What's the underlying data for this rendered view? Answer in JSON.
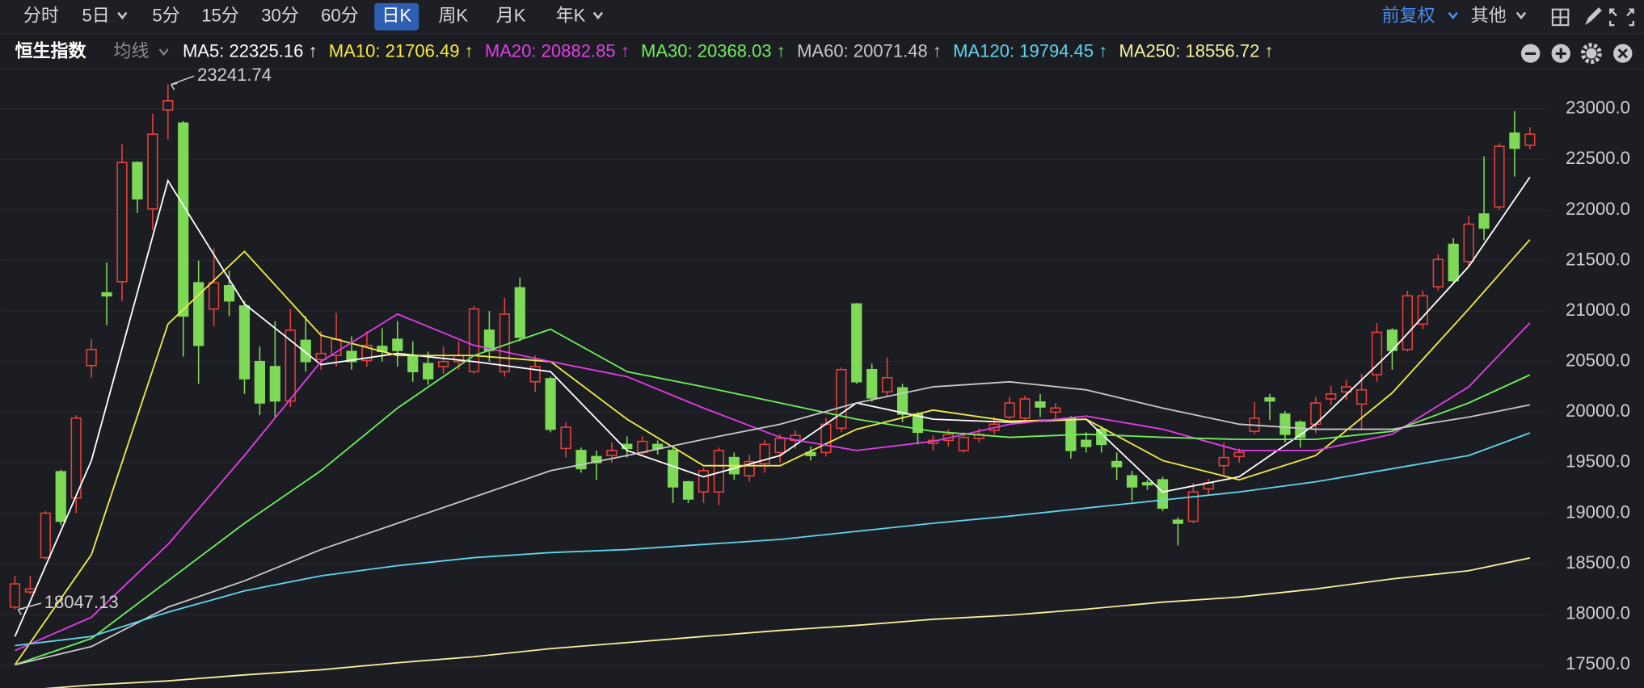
{
  "toolbar": {
    "periods": [
      "分时",
      "5日",
      "5分",
      "15分",
      "30分",
      "60分",
      "日K",
      "周K",
      "月K",
      "年K"
    ],
    "active_period": "日K",
    "adjust": "前复权",
    "other": "其他"
  },
  "chart_data": {
    "type": "candlestick",
    "title": "恒生指数",
    "indicator_label": "均线",
    "up_color": "#e8413b",
    "down_color": "#7ed957",
    "candles": {
      "open": [
        18070,
        18220,
        18560,
        19410,
        19150,
        20460,
        21180,
        21290,
        22470,
        22010,
        22990,
        22860,
        21280,
        21020,
        21250,
        21050,
        20500,
        20450,
        20110,
        20710,
        20520,
        20560,
        20600,
        20510,
        20650,
        20720,
        20560,
        20480,
        20450,
        20500,
        20400,
        20810,
        20400,
        21230,
        20300,
        20330,
        19640,
        19620,
        19560,
        19570,
        19680,
        19600,
        19680,
        19620,
        19310,
        19210,
        19210,
        19550,
        19370,
        19490,
        19600,
        19720,
        19600,
        19600,
        19840,
        21070,
        20420,
        20200,
        20240,
        19980,
        19690,
        19720,
        19620,
        19740,
        19820,
        19950,
        19940,
        20100,
        20000,
        19940,
        19720,
        19830,
        19510,
        19370,
        19300,
        19330,
        18930,
        18920,
        19240,
        19470,
        19560,
        19810,
        20140,
        19980,
        19900,
        19880,
        20130,
        20200,
        20080,
        20370,
        20810,
        20620,
        20870,
        21240,
        21660,
        21490,
        21960,
        22030,
        22760,
        22640
      ],
      "high": [
        18380,
        18380,
        19020,
        19430,
        19970,
        20720,
        21480,
        22650,
        22480,
        22950,
        23241.74,
        22880,
        21500,
        21620,
        21400,
        21100,
        20650,
        20900,
        21020,
        20950,
        20800,
        20980,
        20750,
        20800,
        20830,
        20900,
        20700,
        20600,
        20650,
        20700,
        21050,
        21000,
        21130,
        21330,
        20560,
        20350,
        19900,
        19650,
        19620,
        19700,
        19760,
        19760,
        19720,
        19650,
        19320,
        19450,
        19650,
        19600,
        19580,
        19720,
        19780,
        19820,
        19660,
        19940,
        20440,
        21080,
        20480,
        20540,
        20280,
        20000,
        19770,
        19830,
        19800,
        19840,
        19950,
        20150,
        20160,
        20180,
        20090,
        19960,
        19800,
        19860,
        19600,
        19420,
        19330,
        19360,
        18960,
        19300,
        19340,
        19700,
        19640,
        20100,
        20180,
        20010,
        19920,
        20150,
        20260,
        20320,
        20380,
        20880,
        20830,
        21200,
        21200,
        21560,
        21720,
        21940,
        22530,
        22660,
        22980,
        22820
      ],
      "low": [
        18047.13,
        18200,
        18540,
        18880,
        19000,
        20340,
        20860,
        21100,
        21970,
        21800,
        22700,
        20550,
        20280,
        20850,
        20950,
        20180,
        19970,
        19950,
        20050,
        20400,
        20420,
        20450,
        20420,
        20450,
        20500,
        20450,
        20300,
        20270,
        20380,
        20420,
        20380,
        20500,
        20350,
        20700,
        20200,
        19800,
        19550,
        19400,
        19330,
        19500,
        19550,
        19560,
        19580,
        19100,
        19100,
        19100,
        19080,
        19330,
        19310,
        19400,
        19500,
        19640,
        19520,
        19560,
        19800,
        20280,
        20100,
        20150,
        19900,
        19680,
        19620,
        19660,
        19600,
        19700,
        19780,
        19930,
        19900,
        19950,
        19930,
        19540,
        19600,
        19600,
        19330,
        19120,
        19230,
        19020,
        18680,
        18900,
        19180,
        19380,
        19500,
        19780,
        19920,
        19700,
        19650,
        19790,
        20070,
        20120,
        19820,
        20300,
        20420,
        20600,
        20820,
        21200,
        21270,
        21450,
        21700,
        22000,
        22330,
        22600
      ],
      "close": [
        18300,
        18250,
        19000,
        18920,
        19940,
        20620,
        21150,
        22470,
        22110,
        22750,
        23080,
        20950,
        20660,
        21280,
        21100,
        20330,
        20090,
        20110,
        20810,
        20500,
        20580,
        20720,
        20500,
        20660,
        20600,
        20610,
        20400,
        20330,
        20500,
        20560,
        21020,
        20610,
        20970,
        20740,
        20450,
        19830,
        19850,
        19440,
        19500,
        19620,
        19640,
        19710,
        19640,
        19260,
        19140,
        19420,
        19620,
        19390,
        19510,
        19680,
        19740,
        19770,
        19570,
        19880,
        20420,
        20300,
        20140,
        20340,
        19980,
        19800,
        19720,
        19780,
        19750,
        19780,
        19880,
        20090,
        20130,
        20050,
        20040,
        19620,
        19660,
        19680,
        19460,
        19260,
        19280,
        19050,
        18900,
        19210,
        19300,
        19550,
        19600,
        19940,
        20110,
        19780,
        19750,
        20090,
        20180,
        20250,
        20220,
        20790,
        20610,
        21150,
        21150,
        21510,
        21300,
        21860,
        21820,
        22630,
        22610,
        22750
      ]
    },
    "ylim": [
      17270,
      23352
    ],
    "yticks": [
      {
        "value": 17500,
        "label": "17500.0"
      },
      {
        "value": 18000,
        "label": "18000.0"
      },
      {
        "value": 18500,
        "label": "18500.0"
      },
      {
        "value": 19000,
        "label": "19000.0"
      },
      {
        "value": 19500,
        "label": "19500.0"
      },
      {
        "value": 20000,
        "label": "20000.0"
      },
      {
        "value": 20500,
        "label": "20500.0"
      },
      {
        "value": 21000,
        "label": "21000.0"
      },
      {
        "value": 21500,
        "label": "21500.0"
      },
      {
        "value": 22000,
        "label": "22000.0"
      },
      {
        "value": 22500,
        "label": "22500.0"
      },
      {
        "value": 23000,
        "label": "23000.0"
      }
    ],
    "grid": true,
    "line_x": [
      0,
      5,
      10,
      15,
      20,
      25,
      30,
      35,
      40,
      45,
      50,
      55,
      60,
      65,
      70,
      75,
      80,
      85,
      90,
      95,
      99
    ],
    "series": [
      {
        "name": "MA5: 22325.16 ↑",
        "color": "#ffffff",
        "values": [
          17780,
          19520,
          22290,
          21070,
          20470,
          20580,
          20500,
          20400,
          19620,
          19360,
          19570,
          20090,
          19930,
          19900,
          19930,
          19210,
          19360,
          19880,
          20610,
          21440,
          22325.16
        ]
      },
      {
        "name": "MA10: 21706.49 ↑",
        "color": "#f5ec42",
        "values": [
          17500,
          18590,
          20870,
          21590,
          20760,
          20560,
          20560,
          20500,
          19930,
          19470,
          19470,
          19830,
          20020,
          19910,
          19930,
          19520,
          19330,
          19570,
          20190,
          21020,
          21706.49
        ]
      },
      {
        "name": "MA20: 20882.85 ↑",
        "color": "#e33ee8",
        "values": [
          17640,
          17970,
          18690,
          19570,
          20500,
          20970,
          20660,
          20500,
          20350,
          20040,
          19750,
          19620,
          19710,
          19880,
          19960,
          19830,
          19620,
          19620,
          19780,
          20250,
          20882.85
        ]
      },
      {
        "name": "MA30: 20368.03 ↑",
        "color": "#6ef05a",
        "values": [
          17500,
          17760,
          18330,
          18900,
          19420,
          20040,
          20560,
          20820,
          20400,
          20250,
          20090,
          19930,
          19810,
          19750,
          19780,
          19750,
          19730,
          19730,
          19810,
          20090,
          20368.03
        ]
      },
      {
        "name": "MA60: 20071.48 ↑",
        "color": "#c8c8c8",
        "values": [
          17500,
          17680,
          18070,
          18330,
          18640,
          18900,
          19160,
          19420,
          19570,
          19730,
          19880,
          20090,
          20250,
          20300,
          20220,
          20040,
          19880,
          19830,
          19830,
          19950,
          20071.48
        ]
      },
      {
        "name": "MA120: 19794.45 ↑",
        "color": "#5fd6ee",
        "values": [
          17690,
          17780,
          18020,
          18230,
          18380,
          18480,
          18560,
          18610,
          18640,
          18690,
          18740,
          18820,
          18900,
          18970,
          19050,
          19130,
          19210,
          19310,
          19440,
          19570,
          19794.45
        ]
      },
      {
        "name": "MA250: 18556.72 ↑",
        "color": "#f7f0a0",
        "values": [
          17240,
          17300,
          17340,
          17400,
          17450,
          17520,
          17580,
          17660,
          17720,
          17780,
          17840,
          17890,
          17950,
          17990,
          18050,
          18120,
          18170,
          18250,
          18350,
          18430,
          18556.72
        ]
      }
    ],
    "annotations": [
      {
        "value": 23241.74,
        "x": 10
      },
      {
        "value": 18047.13,
        "x": 0
      }
    ]
  }
}
